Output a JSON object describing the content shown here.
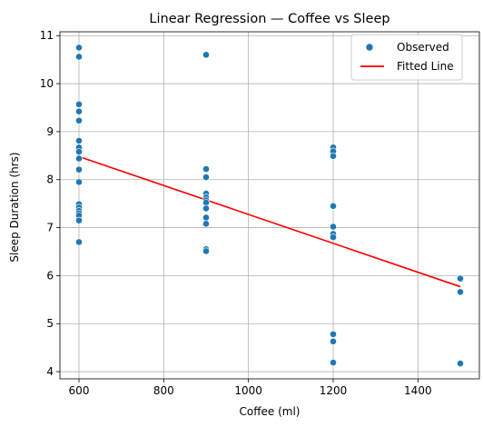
{
  "chart_data": {
    "type": "scatter",
    "title": "Linear Regression — Coffee vs Sleep",
    "xlabel": "Coffee (ml)",
    "ylabel": "Sleep Duration (hrs)",
    "xlim": [
      555,
      1545
    ],
    "ylim": [
      3.85,
      11.08
    ],
    "xticks": [
      600,
      800,
      1000,
      1200,
      1400
    ],
    "yticks": [
      4,
      5,
      6,
      7,
      8,
      9,
      10,
      11
    ],
    "grid": true,
    "legend_position": "top-right",
    "series": [
      {
        "name": "Observed",
        "kind": "scatter",
        "color": "#1f77b4",
        "points": [
          [
            600,
            10.75
          ],
          [
            600,
            10.56
          ],
          [
            600,
            9.57
          ],
          [
            600,
            9.42
          ],
          [
            600,
            9.23
          ],
          [
            600,
            8.81
          ],
          [
            600,
            8.67
          ],
          [
            600,
            8.58
          ],
          [
            600,
            8.44
          ],
          [
            600,
            8.21
          ],
          [
            600,
            7.95
          ],
          [
            600,
            7.49
          ],
          [
            600,
            7.42
          ],
          [
            600,
            7.35
          ],
          [
            600,
            7.3
          ],
          [
            600,
            7.25
          ],
          [
            600,
            7.15
          ],
          [
            600,
            6.7
          ],
          [
            900,
            10.6
          ],
          [
            900,
            8.22
          ],
          [
            900,
            8.05
          ],
          [
            900,
            7.71
          ],
          [
            900,
            7.63
          ],
          [
            900,
            7.57
          ],
          [
            900,
            7.52
          ],
          [
            900,
            7.4
          ],
          [
            900,
            7.21
          ],
          [
            900,
            7.08
          ],
          [
            900,
            6.55
          ],
          [
            900,
            6.51
          ],
          [
            1200,
            8.67
          ],
          [
            1200,
            8.59
          ],
          [
            1200,
            8.49
          ],
          [
            1200,
            7.45
          ],
          [
            1200,
            7.02
          ],
          [
            1200,
            6.87
          ],
          [
            1200,
            6.8
          ],
          [
            1200,
            4.78
          ],
          [
            1200,
            4.63
          ],
          [
            1200,
            4.19
          ],
          [
            1500,
            5.94
          ],
          [
            1500,
            5.66
          ],
          [
            1500,
            4.17
          ]
        ]
      },
      {
        "name": "Fitted Line",
        "kind": "line",
        "color": "#ff0000",
        "points": [
          [
            600,
            8.48
          ],
          [
            1500,
            5.77
          ]
        ]
      }
    ]
  }
}
